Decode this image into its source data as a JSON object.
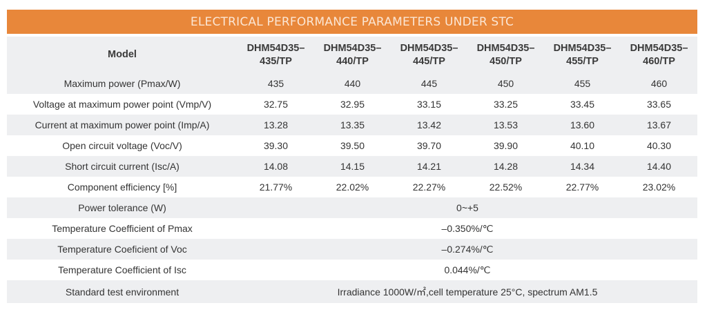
{
  "title": "ELECTRICAL PERFORMANCE PARAMETERS UNDER STC",
  "header": {
    "label": "Model",
    "models": [
      [
        "DHM54D35–",
        "435/TP"
      ],
      [
        "DHM54D35–",
        "440/TP"
      ],
      [
        "DHM54D35–",
        "445/TP"
      ],
      [
        "DHM54D35–",
        "450/TP"
      ],
      [
        "DHM54D35–",
        "455/TP"
      ],
      [
        "DHM54D35–",
        "460/TP"
      ]
    ]
  },
  "rows": [
    {
      "label": "Maximum power (Pmax/W)",
      "values": [
        "435",
        "440",
        "445",
        "450",
        "455",
        "460"
      ]
    },
    {
      "label": "Voltage at maximum power point (Vmp/V)",
      "values": [
        "32.75",
        "32.95",
        "33.15",
        "33.25",
        "33.45",
        "33.65"
      ]
    },
    {
      "label": "Current at maximum power point (Imp/A)",
      "values": [
        "13.28",
        "13.35",
        "13.42",
        "13.53",
        "13.60",
        "13.67"
      ]
    },
    {
      "label": "Open circuit voltage (Voc/V)",
      "values": [
        "39.30",
        "39.50",
        "39.70",
        "39.90",
        "40.10",
        "40.30"
      ]
    },
    {
      "label": "Short circuit current (Isc/A)",
      "values": [
        "14.08",
        "14.15",
        "14.21",
        "14.28",
        "14.34",
        "14.40"
      ]
    },
    {
      "label": "Component efficiency [%]",
      "values": [
        "21.77%",
        "22.02%",
        "22.27%",
        "22.52%",
        "22.77%",
        "23.02%"
      ]
    }
  ],
  "span_rows": [
    {
      "label": "Power tolerance (W)",
      "value": "0~+5"
    },
    {
      "label": "Temperature Coefficient of Pmax",
      "value": "–0.350%/℃"
    },
    {
      "label": "Temperature Coeficient of Voc",
      "value": "–0.274%/℃"
    },
    {
      "label": "Temperature Coefficient of Isc",
      "value": "0.044%/℃"
    },
    {
      "label": "Standard test environment",
      "value": "Irradiance 1000W/㎡,cell temperature 25°C, spectrum AM1.5"
    }
  ],
  "colors": {
    "accent": "#e8873a",
    "stripe": "#eeeff1"
  }
}
